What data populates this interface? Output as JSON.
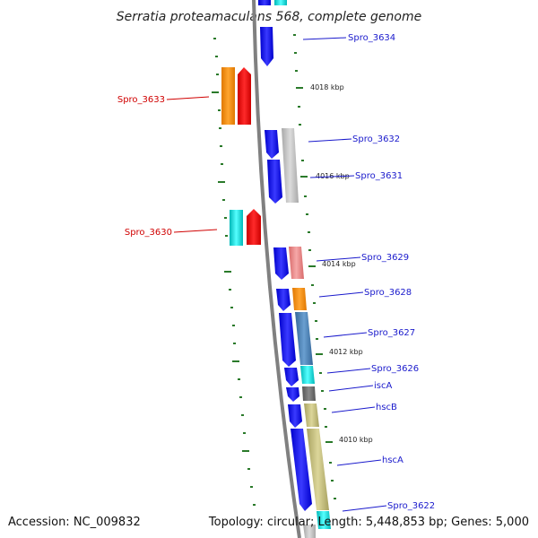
{
  "title": "Serratia proteamaculans 568, complete genome",
  "footer": {
    "accession": "Accession: NC_009832",
    "topology": "Topology: circular; Length: 5,448,853 bp; Genes: 5,000"
  },
  "kbp_labels": [
    "4018 kbp",
    "4016 kbp",
    "4014 kbp",
    "4012 kbp",
    "4010 kbp"
  ],
  "gene_labels_right": [
    "Spro_3634",
    "Spro_3632",
    "Spro_3631",
    "Spro_3629",
    "Spro_3628",
    "Spro_3627",
    "Spro_3626",
    "iscA",
    "hscB",
    "hscA",
    "Spro_3622"
  ],
  "gene_labels_left": [
    "Spro_3633",
    "Spro_3630"
  ],
  "colors": {
    "blue": "#0000ee",
    "gray": "#bdbdbd",
    "orange": "#ff8c00",
    "red": "#ee0000",
    "cyan": "#00d6d6",
    "pink": "#ee8080",
    "steel": "#4682b4",
    "darkgray": "#707070",
    "khaki": "#bdb76b",
    "backbone": "#808080"
  }
}
